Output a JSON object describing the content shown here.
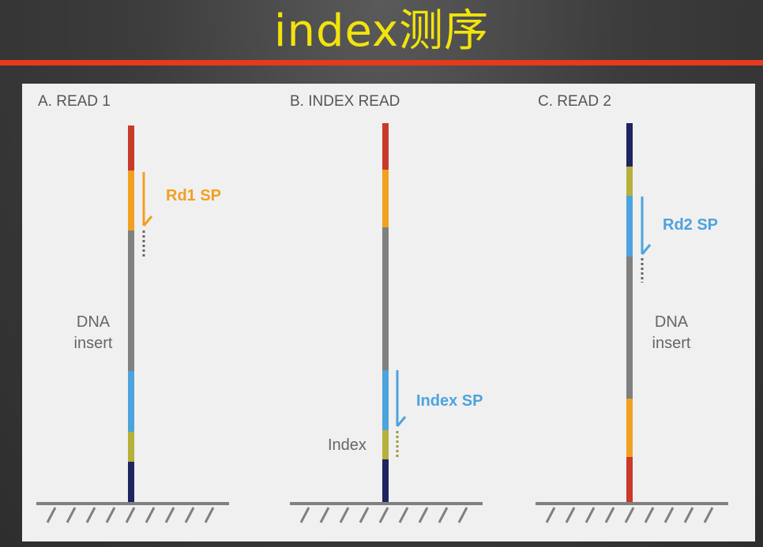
{
  "title": "index测序",
  "panels": [
    {
      "header": "A. READ 1",
      "primer_label": "Rd1 SP",
      "insert_label_line1": "DNA",
      "insert_label_line2": "insert"
    },
    {
      "header": "B. INDEX READ",
      "primer_label": "Index SP",
      "index_label": "Index"
    },
    {
      "header": "C. READ 2",
      "primer_label": "Rd2 SP",
      "insert_label_line1": "DNA",
      "insert_label_line2": "insert"
    }
  ],
  "colors": {
    "title": "#f2e30c",
    "rule": "#e53a1c",
    "red": "#c83a2a",
    "orange": "#f2a020",
    "gray": "#808080",
    "blue": "#4da3dd",
    "olive": "#b5b13a",
    "navy": "#1f2560",
    "orange_text": "#f2a020",
    "blue_text": "#4da3dd"
  }
}
